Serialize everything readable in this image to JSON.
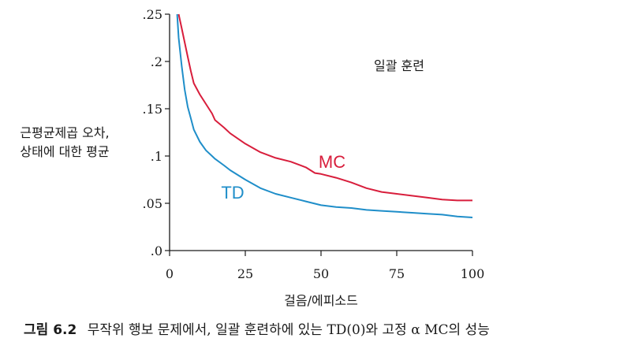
{
  "chart_data": {
    "type": "line",
    "title": "일괄 훈련",
    "xlabel": "걸음/에피소드",
    "ylabel": [
      "근평균제곱 오차,",
      "상태에 대한 평균"
    ],
    "xlim": [
      0,
      100
    ],
    "ylim": [
      0,
      0.25
    ],
    "x_ticks": [
      0,
      25,
      50,
      75,
      100
    ],
    "x_tick_labels": [
      "0",
      "25",
      "50",
      "75",
      "100"
    ],
    "y_ticks": [
      0,
      0.05,
      0.1,
      0.15,
      0.2,
      0.25
    ],
    "y_tick_labels": [
      ".0",
      ".05",
      ".1",
      ".15",
      ".2",
      ".25"
    ],
    "series": [
      {
        "name": "MC",
        "color": "#d81e3c",
        "x": [
          3,
          4,
          5,
          6,
          7,
          8,
          10,
          12,
          14,
          15,
          18,
          20,
          25,
          30,
          35,
          40,
          45,
          48,
          50,
          55,
          60,
          65,
          70,
          75,
          80,
          85,
          90,
          95,
          100
        ],
        "values": [
          0.25,
          0.235,
          0.22,
          0.205,
          0.19,
          0.177,
          0.165,
          0.155,
          0.145,
          0.138,
          0.13,
          0.124,
          0.113,
          0.104,
          0.098,
          0.094,
          0.088,
          0.082,
          0.081,
          0.077,
          0.072,
          0.066,
          0.062,
          0.06,
          0.058,
          0.056,
          0.054,
          0.053,
          0.053
        ]
      },
      {
        "name": "TD",
        "color": "#1f8ec9",
        "x": [
          2.5,
          3,
          4,
          5,
          6,
          7,
          8,
          10,
          12,
          14,
          15,
          18,
          20,
          25,
          30,
          35,
          40,
          45,
          50,
          55,
          60,
          65,
          70,
          75,
          80,
          85,
          90,
          95,
          100
        ],
        "values": [
          0.25,
          0.225,
          0.195,
          0.17,
          0.152,
          0.14,
          0.128,
          0.115,
          0.106,
          0.1,
          0.097,
          0.09,
          0.085,
          0.075,
          0.066,
          0.06,
          0.056,
          0.052,
          0.048,
          0.046,
          0.045,
          0.043,
          0.042,
          0.041,
          0.04,
          0.039,
          0.038,
          0.036,
          0.035
        ]
      }
    ]
  },
  "caption": {
    "figure_number": "그림 6.2",
    "text": "무작위 행보 문제에서, 일괄 훈련하에 있는 TD(0)와 고정 α MC의 성능"
  }
}
